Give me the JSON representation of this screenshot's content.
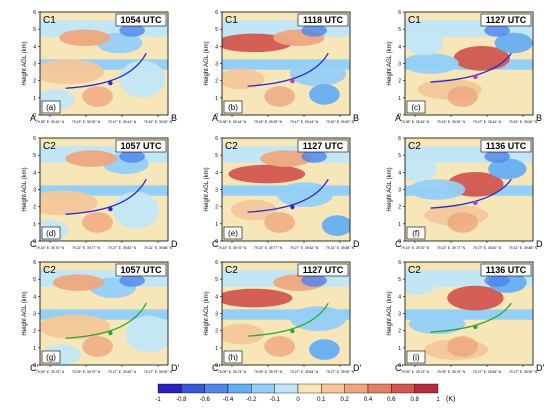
{
  "panels": [
    {
      "letter": "(a)",
      "cname": "C1",
      "time": "1054 UTC",
      "start": "A",
      "end": "B",
      "ylabel": "Height AGL (km)",
      "xticks": [
        "79.38° E, 39.34° N",
        "79.43° E, 39.39° N",
        "79.47° E, 39.44° N",
        "79.52° E, 39.50° N"
      ],
      "line_color": "#2a2ad0",
      "marker_color": "#2a2ad0"
    },
    {
      "letter": "(b)",
      "cname": "C1",
      "time": "1118 UTC",
      "start": "A",
      "end": "B",
      "ylabel": "Height AGL (km)",
      "xticks": [
        "79.38° E, 39.34° N",
        "79.43° E, 39.39° N",
        "79.47° E, 39.44° N",
        "79.52° E, 39.50° N"
      ],
      "line_color": "#2a2ad0",
      "marker_color": "#c23ac0"
    },
    {
      "letter": "(c)",
      "cname": "C1",
      "time": "1127 UTC",
      "start": "A",
      "end": "B",
      "ylabel": "Height AGL (km)",
      "xticks": [
        "79.38° E, 39.34° N",
        "79.43° E, 39.39° N",
        "79.47° E, 39.44° N",
        "79.52° E, 39.50° N"
      ],
      "line_color": "#2a2ad0",
      "marker_color": "#c23ac0"
    },
    {
      "letter": "(d)",
      "cname": "C2",
      "time": "1057 UTC",
      "start": "C",
      "end": "D",
      "ylabel": "Height AGL (km)",
      "xticks": [
        "79.15° E, 39.70° N",
        "79.22° E, 39.77° N",
        "79.27° E, 39.82° N",
        "79.31° E, 39.88° N"
      ],
      "line_color": "#2a2ad0",
      "marker_color": "#2a2ad0"
    },
    {
      "letter": "(e)",
      "cname": "C2",
      "time": "1127 UTC",
      "start": "C",
      "end": "D",
      "ylabel": "Height AGL (km)",
      "xticks": [
        "79.15° E, 39.70° N",
        "79.22° E, 39.77° N",
        "79.27° E, 39.82° N",
        "79.31° E, 39.88° N"
      ],
      "line_color": "#2a2ad0",
      "marker_color": "#2a2ad0"
    },
    {
      "letter": "(f)",
      "cname": "C2",
      "time": "1136 UTC",
      "start": "C",
      "end": "D",
      "ylabel": "Height AGL (km)",
      "xticks": [
        "79.15° E, 39.70° N",
        "79.22° E, 39.77° N",
        "79.27° E, 39.82° N",
        "79.31° E, 39.88° N"
      ],
      "line_color": "#2a2ad0",
      "marker_color": "#c23ac0"
    },
    {
      "letter": "(g)",
      "cname": "C2",
      "time": "1057 UTC",
      "start": "C'",
      "end": "D'",
      "ylabel": "Height AGL (km)",
      "xticks": [
        "79.09° E, 39.73° N",
        "79.09° E, 39.79° N",
        "79.27° E, 39.84° N",
        "79.27° E, 39.90° N"
      ],
      "line_color": "#2ea82e",
      "marker_color": "#2ea82e"
    },
    {
      "letter": "(h)",
      "cname": "C2",
      "time": "1127 UTC",
      "start": "C'",
      "end": "D'",
      "ylabel": "Height AGL (km)",
      "xticks": [
        "79.09° E, 39.73° N",
        "79.09° E, 39.79° N",
        "79.27° E, 39.84° N",
        "79.27° E, 39.90° N"
      ],
      "line_color": "#2ea82e",
      "marker_color": "#2ea82e"
    },
    {
      "letter": "(i)",
      "cname": "C2",
      "time": "1136 UTC",
      "start": "C'",
      "end": "D'",
      "ylabel": "Height AGL (km)",
      "xticks": [
        "79.09° E, 39.73° N",
        "79.09° E, 39.79° N",
        "79.27° E, 39.84° N",
        "79.27° E, 39.90° N"
      ],
      "line_color": "#2ea82e",
      "marker_color": "#2ea82e"
    }
  ],
  "yticks": [
    "0",
    "1",
    "2",
    "3",
    "4",
    "5",
    "6"
  ],
  "colorbar": {
    "ticks": [
      "-1",
      "-0.8",
      "-0.6",
      "-0.4",
      "-0.2",
      "-0.1",
      "0",
      "0.1",
      "0.2",
      "0.4",
      "0.6",
      "0.8",
      "1"
    ],
    "unit": "(K)",
    "colors": [
      "#2a1fb8",
      "#3a56d6",
      "#4f86ea",
      "#66aef2",
      "#93cff6",
      "#c2e6f6",
      "#f7e6b8",
      "#f3c79a",
      "#eea67e",
      "#e47f63",
      "#d2574e",
      "#b32e3c"
    ]
  }
}
